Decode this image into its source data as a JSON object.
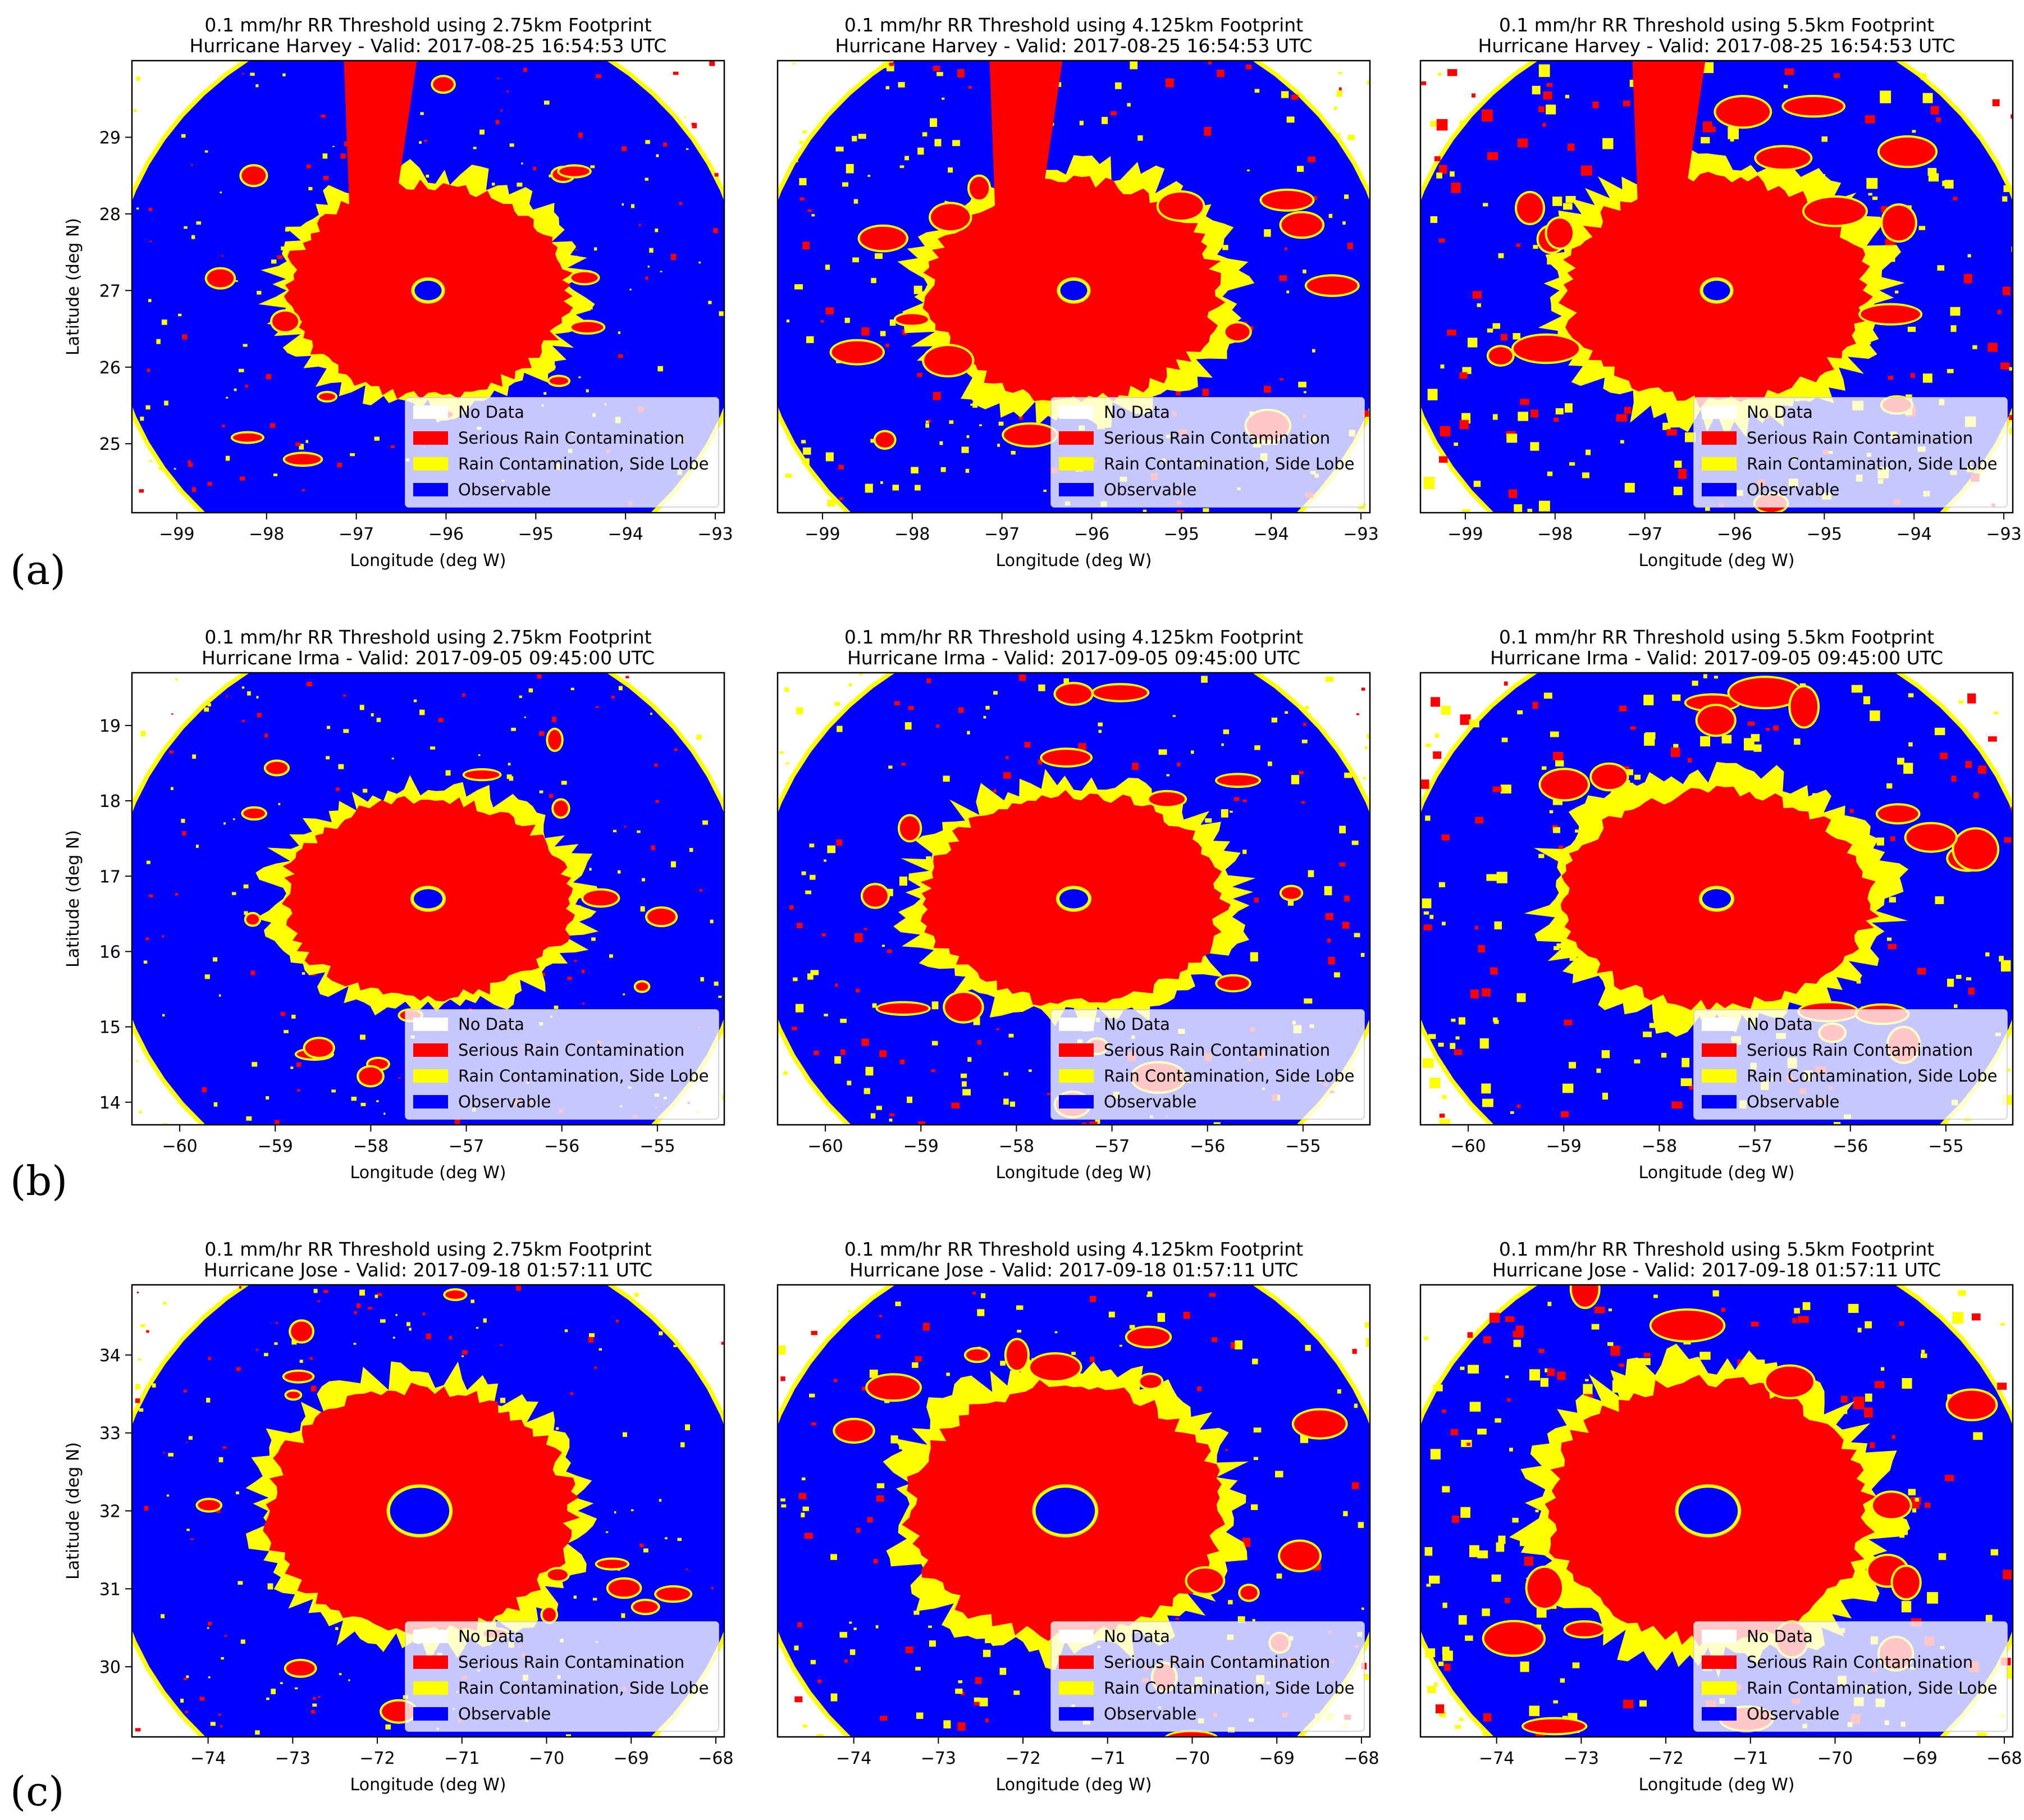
{
  "figure": {
    "row_labels": [
      "(a)",
      "(b)",
      "(c)"
    ],
    "x_axis_label": "Longitude (deg W)",
    "y_axis_label": "Latitude (deg N)",
    "legend": [
      {
        "label": "No Data",
        "color": "#ffffff"
      },
      {
        "label": "Serious Rain Contamination",
        "color": "#ff0000"
      },
      {
        "label": "Rain Contamination, Side Lobe",
        "color": "#ffff00"
      },
      {
        "label": "Observable",
        "color": "#0000ff"
      }
    ]
  },
  "chart_data": [
    {
      "type": "heatmap",
      "row": 0,
      "col": 0,
      "storm": "Harvey",
      "title": [
        "0.1 mm/hr RR Threshold using 2.75km Footprint",
        "Hurricane Harvey - Valid: 2017-08-25 16:54:53 UTC"
      ],
      "xlim": [
        -99.5,
        -92.9
      ],
      "ylim": [
        24.1,
        30.0
      ],
      "xticks": [
        -99,
        -98,
        -97,
        -96,
        -95,
        -94,
        -93
      ],
      "yticks": [
        25,
        26,
        27,
        28,
        29
      ],
      "xlabel": "Longitude (deg W)",
      "ylabel": "Latitude (deg N)",
      "footprint_km": 2.75,
      "eye": [
        -96.2,
        27.0
      ],
      "core_radius_deg": 1.4
    },
    {
      "type": "heatmap",
      "row": 0,
      "col": 1,
      "storm": "Harvey",
      "title": [
        "0.1 mm/hr RR Threshold using 4.125km Footprint",
        "Hurricane Harvey - Valid: 2017-08-25 16:54:53 UTC"
      ],
      "xlim": [
        -99.5,
        -92.9
      ],
      "ylim": [
        24.1,
        30.0
      ],
      "xticks": [
        -99,
        -98,
        -97,
        -96,
        -95,
        -94,
        -93
      ],
      "yticks": [],
      "xlabel": "Longitude (deg W)",
      "ylabel": "",
      "footprint_km": 4.125,
      "eye": [
        -96.2,
        27.0
      ],
      "core_radius_deg": 1.45
    },
    {
      "type": "heatmap",
      "row": 0,
      "col": 2,
      "storm": "Harvey",
      "title": [
        "0.1 mm/hr RR Threshold using 5.5km Footprint",
        "Hurricane Harvey - Valid: 2017-08-25 16:54:53 UTC"
      ],
      "xlim": [
        -99.5,
        -92.9
      ],
      "ylim": [
        24.1,
        30.0
      ],
      "xticks": [
        -99,
        -98,
        -97,
        -96,
        -95,
        -94,
        -93
      ],
      "yticks": [],
      "xlabel": "Longitude (deg W)",
      "ylabel": "",
      "footprint_km": 5.5,
      "eye": [
        -96.2,
        27.0
      ],
      "core_radius_deg": 1.5
    },
    {
      "type": "heatmap",
      "row": 1,
      "col": 0,
      "storm": "Irma",
      "title": [
        "0.1 mm/hr RR Threshold using 2.75km Footprint",
        "Hurricane Irma - Valid: 2017-09-05 09:45:00 UTC"
      ],
      "xlim": [
        -60.5,
        -54.3
      ],
      "ylim": [
        13.7,
        19.7
      ],
      "xticks": [
        -60,
        -59,
        -58,
        -57,
        -56,
        -55
      ],
      "yticks": [
        14,
        15,
        16,
        17,
        18,
        19
      ],
      "xlabel": "Longitude (deg W)",
      "ylabel": "Latitude (deg N)",
      "footprint_km": 2.75,
      "eye": [
        -57.4,
        16.7
      ],
      "core_radius_deg": 1.35
    },
    {
      "type": "heatmap",
      "row": 1,
      "col": 1,
      "storm": "Irma",
      "title": [
        "0.1 mm/hr RR Threshold using 4.125km Footprint",
        "Hurricane Irma - Valid: 2017-09-05 09:45:00 UTC"
      ],
      "xlim": [
        -60.5,
        -54.3
      ],
      "ylim": [
        13.7,
        19.7
      ],
      "xticks": [
        -60,
        -59,
        -58,
        -57,
        -56,
        -55
      ],
      "yticks": [],
      "xlabel": "Longitude (deg W)",
      "ylabel": "",
      "footprint_km": 4.125,
      "eye": [
        -57.4,
        16.7
      ],
      "core_radius_deg": 1.4
    },
    {
      "type": "heatmap",
      "row": 1,
      "col": 2,
      "storm": "Irma",
      "title": [
        "0.1 mm/hr RR Threshold using 5.5km Footprint",
        "Hurricane Irma - Valid: 2017-09-05 09:45:00 UTC"
      ],
      "xlim": [
        -60.5,
        -54.3
      ],
      "ylim": [
        13.7,
        19.7
      ],
      "xticks": [
        -60,
        -59,
        -58,
        -57,
        -56,
        -55
      ],
      "yticks": [],
      "xlabel": "Longitude (deg W)",
      "ylabel": "",
      "footprint_km": 5.5,
      "eye": [
        -57.4,
        16.7
      ],
      "core_radius_deg": 1.45
    },
    {
      "type": "heatmap",
      "row": 2,
      "col": 0,
      "storm": "Jose",
      "title": [
        "0.1 mm/hr RR Threshold using 2.75km Footprint",
        "Hurricane Jose - Valid: 2017-09-18 01:57:11 UTC"
      ],
      "xlim": [
        -74.9,
        -67.9
      ],
      "ylim": [
        29.1,
        34.9
      ],
      "xticks": [
        -74,
        -73,
        -72,
        -71,
        -70,
        -69,
        -68
      ],
      "yticks": [
        30,
        31,
        32,
        33,
        34
      ],
      "xlabel": "Longitude (deg W)",
      "ylabel": "Latitude (deg N)",
      "footprint_km": 2.75,
      "eye": [
        -71.5,
        32.0
      ],
      "core_radius_deg": 1.6
    },
    {
      "type": "heatmap",
      "row": 2,
      "col": 1,
      "storm": "Jose",
      "title": [
        "0.1 mm/hr RR Threshold using 4.125km Footprint",
        "Hurricane Jose - Valid: 2017-09-18 01:57:11 UTC"
      ],
      "xlim": [
        -74.9,
        -67.9
      ],
      "ylim": [
        29.1,
        34.9
      ],
      "xticks": [
        -74,
        -73,
        -72,
        -71,
        -70,
        -69,
        -68
      ],
      "yticks": [],
      "xlabel": "Longitude (deg W)",
      "ylabel": "",
      "footprint_km": 4.125,
      "eye": [
        -71.5,
        32.0
      ],
      "core_radius_deg": 1.65
    },
    {
      "type": "heatmap",
      "row": 2,
      "col": 2,
      "storm": "Jose",
      "title": [
        "0.1 mm/hr RR Threshold using 5.5km Footprint",
        "Hurricane Jose - Valid: 2017-09-18 01:57:11 UTC"
      ],
      "xlim": [
        -74.9,
        -67.9
      ],
      "ylim": [
        29.1,
        34.9
      ],
      "xticks": [
        -74,
        -73,
        -72,
        -71,
        -70,
        -69,
        -68
      ],
      "yticks": [],
      "xlabel": "Longitude (deg W)",
      "ylabel": "",
      "footprint_km": 5.5,
      "eye": [
        -71.5,
        32.0
      ],
      "core_radius_deg": 1.7
    }
  ]
}
